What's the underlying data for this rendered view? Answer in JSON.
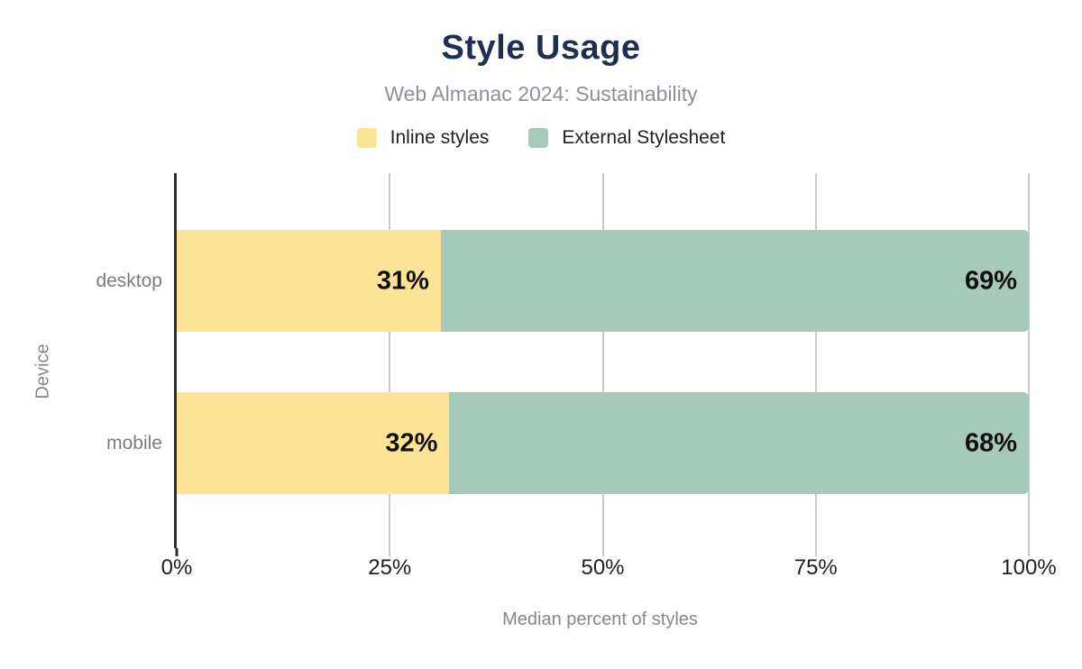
{
  "header": {
    "title": "Style Usage",
    "subtitle": "Web Almanac 2024: Sustainability"
  },
  "legend": [
    {
      "label": "Inline styles",
      "color": "#fde396"
    },
    {
      "label": "External Stylesheet",
      "color": "#a7c9ba"
    }
  ],
  "axes": {
    "y_title": "Device",
    "x_title": "Median percent of styles"
  },
  "chart_data": {
    "type": "bar",
    "orientation": "horizontal",
    "stacked": true,
    "title": "Style Usage",
    "subtitle": "Web Almanac 2024: Sustainability",
    "xlabel": "Median percent of styles",
    "ylabel": "Device",
    "categories": [
      "desktop",
      "mobile"
    ],
    "series": [
      {
        "name": "Inline styles",
        "color": "#fde396",
        "values": [
          31,
          32
        ],
        "labels": [
          "31%",
          "32%"
        ]
      },
      {
        "name": "External Stylesheet",
        "color": "#a7c9ba",
        "values": [
          69,
          68
        ],
        "labels": [
          "69%",
          "68%"
        ]
      }
    ],
    "xlim": [
      0,
      100
    ],
    "xticks": [
      0,
      25,
      50,
      75,
      100
    ],
    "xtick_labels": [
      "0%",
      "25%",
      "50%",
      "75%",
      "100%"
    ],
    "grid": "vertical",
    "legend_position": "top",
    "data_label_format": "{value}%"
  },
  "style": {
    "title_color": "#1e2f51",
    "subtitle_color": "#8d9197",
    "grid_color": "#cbcbcb",
    "axis_line_color": "#2d2d2d",
    "tick_label_color": "#1f1f1f",
    "data_label_color": "#101010",
    "category_label_color": "#7c7c7c",
    "axis_title_color": "#84888d"
  }
}
